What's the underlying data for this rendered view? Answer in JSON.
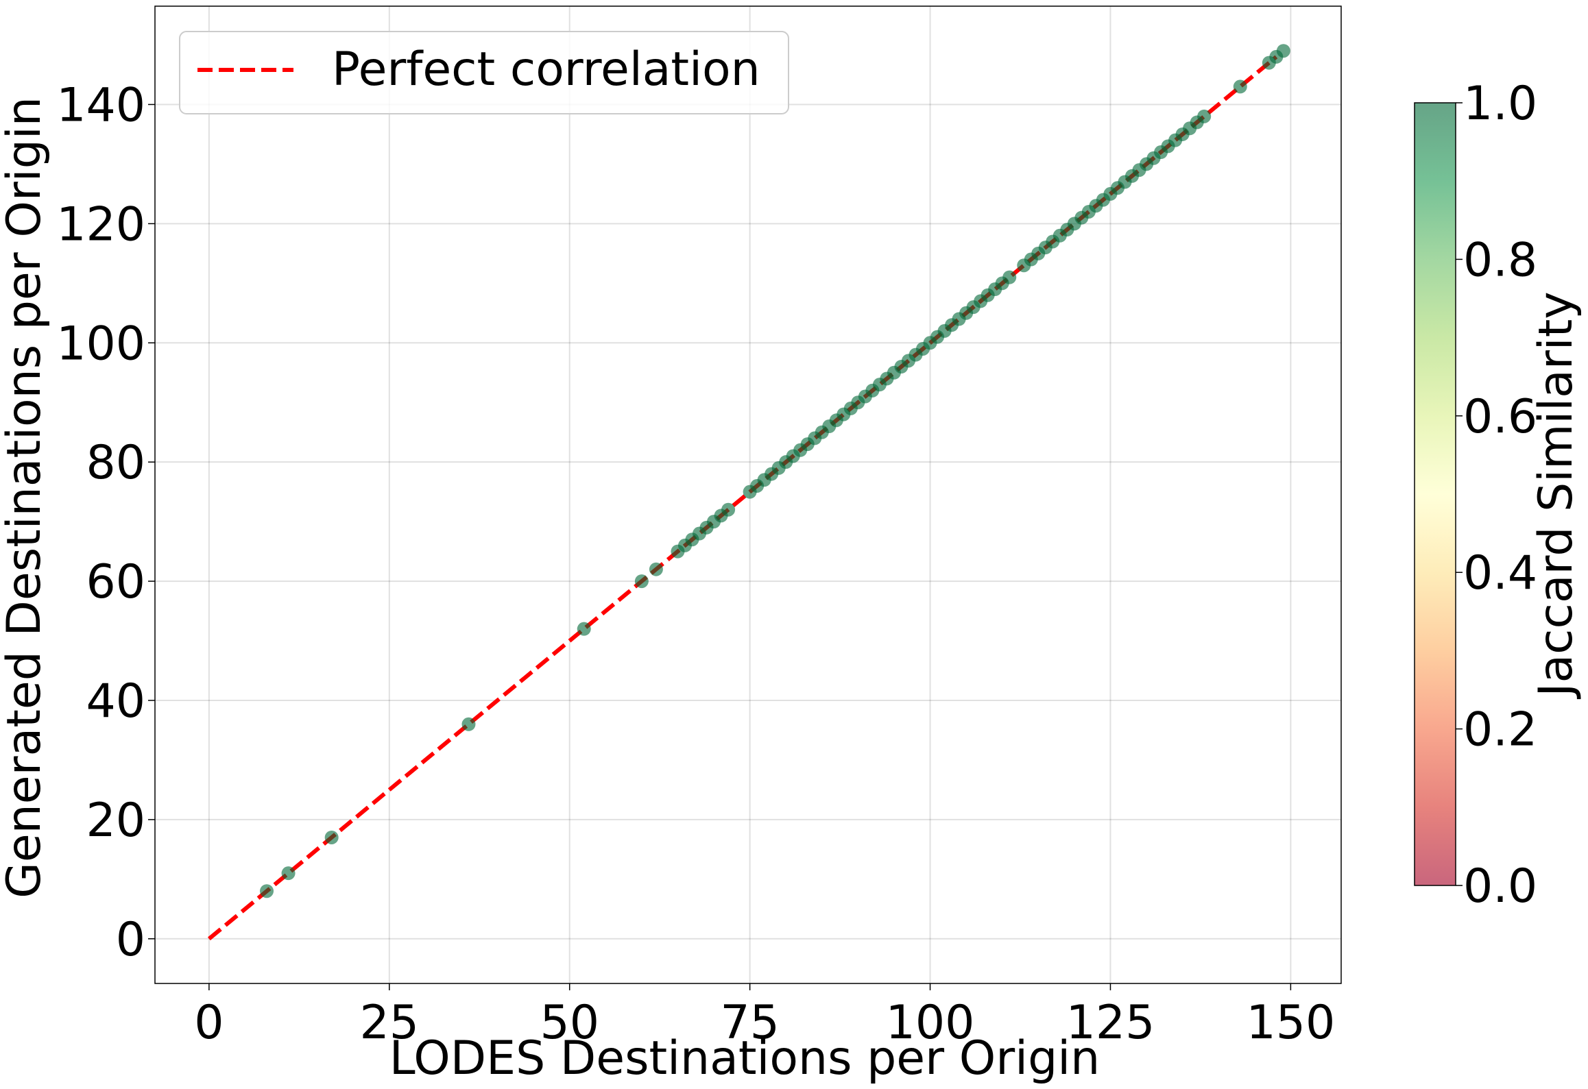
{
  "chart_data": {
    "type": "scatter",
    "title": "",
    "xlabel": "LODES Destinations per Origin",
    "ylabel": "Generated Destinations per Origin",
    "xlim": [
      -7.5,
      157
    ],
    "ylim": [
      -7.5,
      156.5
    ],
    "xticks": [
      0,
      25,
      50,
      75,
      100,
      125,
      150
    ],
    "yticks": [
      0,
      20,
      40,
      60,
      80,
      100,
      120,
      140
    ],
    "grid": true,
    "legend": {
      "location": "top-left",
      "entries": [
        "Perfect correlation"
      ]
    },
    "reference_line": {
      "name": "Perfect correlation",
      "x": [
        0,
        148
      ],
      "y": [
        0,
        148
      ],
      "color": "#ff0000",
      "style": "dashed"
    },
    "colorbar": {
      "label": "Jaccard Similarity",
      "range": [
        0.0,
        1.0
      ],
      "ticks": [
        "0.0",
        "0.2",
        "0.4",
        "0.6",
        "0.8",
        "1.0"
      ],
      "colormap": "RdYlGn",
      "alpha": 0.6
    },
    "points": {
      "jaccard_similarity": 1.0,
      "x": [
        8,
        11,
        17,
        36,
        52,
        60,
        62,
        65,
        66,
        67,
        68,
        69,
        70,
        71,
        72,
        75,
        76,
        77,
        78,
        79,
        80,
        81,
        82,
        83,
        84,
        85,
        86,
        87,
        88,
        89,
        90,
        91,
        92,
        93,
        94,
        95,
        96,
        97,
        98,
        99,
        100,
        101,
        102,
        103,
        104,
        105,
        106,
        107,
        108,
        109,
        110,
        111,
        113,
        114,
        115,
        116,
        117,
        118,
        119,
        120,
        121,
        122,
        123,
        124,
        125,
        126,
        127,
        128,
        129,
        130,
        131,
        132,
        133,
        134,
        135,
        136,
        137,
        138,
        143,
        147,
        148,
        149
      ],
      "y": [
        8,
        11,
        17,
        36,
        52,
        60,
        62,
        65,
        66,
        67,
        68,
        69,
        70,
        71,
        72,
        75,
        76,
        77,
        78,
        79,
        80,
        81,
        82,
        83,
        84,
        85,
        86,
        87,
        88,
        89,
        90,
        91,
        92,
        93,
        94,
        95,
        96,
        97,
        98,
        99,
        100,
        101,
        102,
        103,
        104,
        105,
        106,
        107,
        108,
        109,
        110,
        111,
        113,
        114,
        115,
        116,
        117,
        118,
        119,
        120,
        121,
        122,
        123,
        124,
        125,
        126,
        127,
        128,
        129,
        130,
        131,
        132,
        133,
        134,
        135,
        136,
        137,
        138,
        143,
        147,
        148,
        149
      ]
    }
  }
}
